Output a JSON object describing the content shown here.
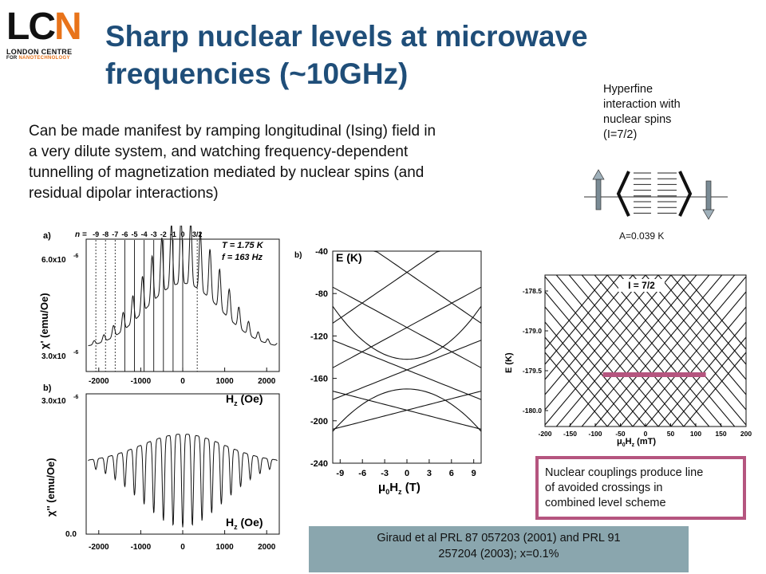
{
  "logo": {
    "letters_l": "LC",
    "letters_n": "N",
    "line1": "LONDON CENTRE",
    "line2_prefix": "FOR ",
    "line2_suffix": "NANOTECHNOLOGY"
  },
  "title": {
    "line1": "Sharp nuclear levels at microwave",
    "line2": "frequencies (~10GHz)"
  },
  "intro": {
    "line1": "Can be made manifest by ramping longitudinal (Ising) field in",
    "line2": "a very dilute system, and watching frequency-dependent",
    "line3": "tunnelling of magnetization mediated by nuclear spins (and",
    "line4": "residual dipolar interactions)"
  },
  "hyperfine": {
    "line1": "Hyperfine",
    "line2": "interaction with",
    "line3": "nuclear spins",
    "line4": "(I=7/2)",
    "a_value": "A=0.039 K"
  },
  "note": {
    "line1": "Nuclear couplings produce line",
    "line2": "of avoided crossings in",
    "line3": "combined level scheme"
  },
  "reference": {
    "line1": "Giraud et al PRL 87 057203 (2001) and PRL 91",
    "line2": "257204 (2003); x=0.1%"
  },
  "colors": {
    "title": "#1f4e79",
    "logo_accent": "#e8731a",
    "note_border": "#b5557f",
    "ref_bg": "#8aa6ae",
    "highlight": "#b5557f"
  },
  "chart_data": [
    {
      "type": "line",
      "panel_label": "a)",
      "n_label": "n =",
      "n_values": [
        "-9",
        "-8",
        "-7",
        "-6",
        "-5",
        "-4",
        "-3",
        "-2",
        "-1",
        "0",
        "3/2"
      ],
      "temperature": "T = 1.75 K",
      "frequency": "f = 163 Hz",
      "ylabel": "χ' (emu/Oe)",
      "xlabel": "Hz (Oe)",
      "y_tick_top": "6.0x10",
      "y_tick_bottom": "3.0x10",
      "y_tick_exp": "-6",
      "xlim": [
        -2300,
        2300
      ],
      "x_ticks": [
        "-2000",
        "-1000",
        "0",
        "1000",
        "2000"
      ]
    },
    {
      "type": "line",
      "panel_label": "b)",
      "ylabel": "χ'' (emu/Oe)",
      "xlabel": "Hz (Oe)",
      "y_tick_top": "3.0x10",
      "y_tick_exp": "-6",
      "y_tick_bottom": "0.0",
      "xlim": [
        -2300,
        2300
      ],
      "x_ticks": [
        "-2000",
        "-1000",
        "0",
        "1000",
        "2000"
      ]
    },
    {
      "type": "line",
      "panel_label": "b)",
      "ylabel": "E (K)",
      "xlabel": "μ0Hz (T)",
      "ylim": [
        -240,
        -40
      ],
      "y_ticks": [
        "-40",
        "-80",
        "-120",
        "-160",
        "-200",
        "-240"
      ],
      "xlim": [
        -10,
        10
      ],
      "x_ticks": [
        "-9",
        "-6",
        "-3",
        "0",
        "3",
        "6",
        "9"
      ]
    },
    {
      "type": "line",
      "title": "I = 7/2",
      "ylabel": "E (K)",
      "xlabel": "μ0Hz (mT)",
      "ylim": [
        -180.2,
        -178.3
      ],
      "y_ticks": [
        "-178.5",
        "-179.0",
        "-179.5",
        "-180.0"
      ],
      "xlim": [
        -200,
        200
      ],
      "x_ticks": [
        "-200",
        "-150",
        "-100",
        "-50",
        "0",
        "50",
        "100",
        "150",
        "200"
      ]
    }
  ]
}
